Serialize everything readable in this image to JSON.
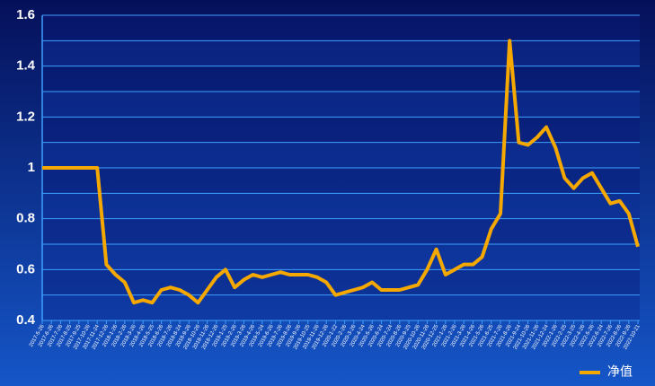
{
  "chart_data": {
    "type": "line",
    "categories": [
      "2017-5-26",
      "2017-6-26",
      "2017-7-26",
      "2017-8-25",
      "2017-9-25",
      "2017-10-26",
      "2017-11-24",
      "2017-12-26",
      "2018-1-26",
      "2018-2-26",
      "2018-3-26",
      "2018-4-26",
      "2018-5-25",
      "2018-6-26",
      "2018-7-26",
      "2018-8-24",
      "2018-9-26",
      "2018-10-26",
      "2018-11-26",
      "2018-12-26",
      "2019-1-25",
      "2019-2-26",
      "2019-3-26",
      "2019-4-26",
      "2019-5-24",
      "2019-6-26",
      "2019-7-26",
      "2019-8-26",
      "2019-9-26",
      "2019-10-25",
      "2019-11-26",
      "2019-12-26",
      "2020-1-22",
      "2020-2-26",
      "2020-3-26",
      "2020-4-24",
      "2020-5-26",
      "2020-6-24",
      "2020-7-24",
      "2020-8-26",
      "2020-9-25",
      "2020-10-26",
      "2020-11-26",
      "2020-12-25",
      "2021-1-26",
      "2021-2-26",
      "2021-3-26",
      "2021-4-26",
      "2021-5-26",
      "2021-6-25",
      "2021-7-26",
      "2021-8-26",
      "2021-9-24",
      "2021-10-26",
      "2021-11-26",
      "2021-12-24",
      "2022-1-26",
      "2022-2-25",
      "2022-3-25",
      "2022-4-26",
      "2022-5-26",
      "2022-6-24",
      "2022-7-26",
      "2022-8-26",
      "2022-9-26",
      "2022-10-21"
    ],
    "series": [
      {
        "name": "净值",
        "color": "#f5a800",
        "values": [
          1.0,
          1.0,
          1.0,
          1.0,
          1.0,
          1.0,
          1.0,
          0.62,
          0.58,
          0.55,
          0.47,
          0.48,
          0.47,
          0.52,
          0.53,
          0.52,
          0.5,
          0.47,
          0.52,
          0.57,
          0.6,
          0.53,
          0.56,
          0.58,
          0.57,
          0.58,
          0.59,
          0.58,
          0.58,
          0.58,
          0.57,
          0.55,
          0.5,
          0.51,
          0.52,
          0.53,
          0.55,
          0.52,
          0.52,
          0.52,
          0.53,
          0.54,
          0.6,
          0.68,
          0.58,
          0.6,
          0.62,
          0.62,
          0.65,
          0.76,
          0.82,
          1.5,
          1.1,
          1.09,
          1.12,
          1.16,
          1.08,
          0.96,
          0.92,
          0.96,
          0.98,
          0.92,
          0.86,
          0.87,
          0.82,
          0.69
        ]
      }
    ],
    "ylim": [
      0.4,
      1.6
    ],
    "yticks": [
      0.4,
      0.6,
      0.8,
      1,
      1.2,
      1.4,
      1.6
    ],
    "grid": true,
    "legend": "bottom-right"
  }
}
